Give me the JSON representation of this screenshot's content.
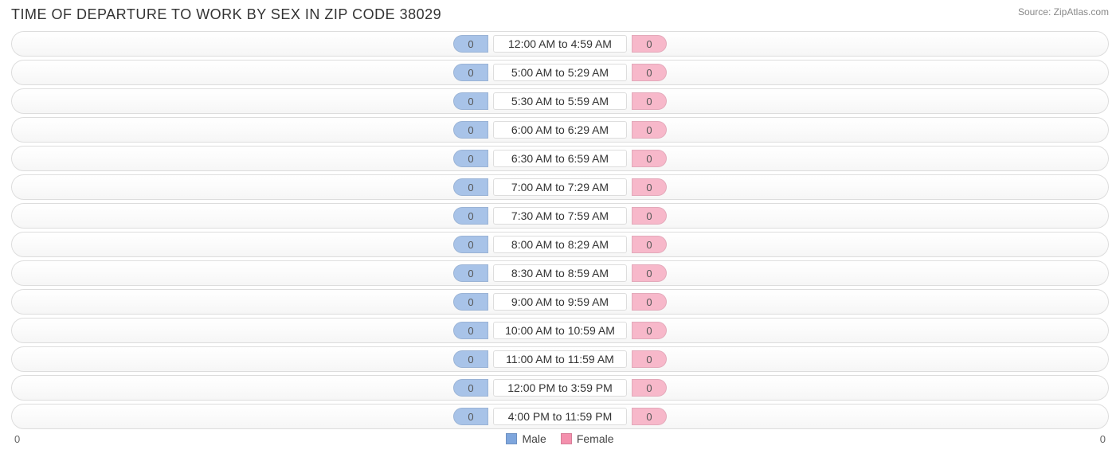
{
  "title": "TIME OF DEPARTURE TO WORK BY SEX IN ZIP CODE 38029",
  "source": "Source: ZipAtlas.com",
  "chart": {
    "type": "diverging-bar",
    "colors": {
      "male_fill": "#a8c3e8",
      "female_fill": "#f7b8ca",
      "track_border": "#dddddd",
      "label_text": "#333333",
      "value_text": "#555555",
      "background": "#ffffff"
    },
    "axis": {
      "left_value": "0",
      "right_value": "0"
    },
    "legend": [
      {
        "label": "Male",
        "color": "#7ea6dd"
      },
      {
        "label": "Female",
        "color": "#f490ad"
      }
    ],
    "rows": [
      {
        "label": "12:00 AM to 4:59 AM",
        "male": "0",
        "female": "0"
      },
      {
        "label": "5:00 AM to 5:29 AM",
        "male": "0",
        "female": "0"
      },
      {
        "label": "5:30 AM to 5:59 AM",
        "male": "0",
        "female": "0"
      },
      {
        "label": "6:00 AM to 6:29 AM",
        "male": "0",
        "female": "0"
      },
      {
        "label": "6:30 AM to 6:59 AM",
        "male": "0",
        "female": "0"
      },
      {
        "label": "7:00 AM to 7:29 AM",
        "male": "0",
        "female": "0"
      },
      {
        "label": "7:30 AM to 7:59 AM",
        "male": "0",
        "female": "0"
      },
      {
        "label": "8:00 AM to 8:29 AM",
        "male": "0",
        "female": "0"
      },
      {
        "label": "8:30 AM to 8:59 AM",
        "male": "0",
        "female": "0"
      },
      {
        "label": "9:00 AM to 9:59 AM",
        "male": "0",
        "female": "0"
      },
      {
        "label": "10:00 AM to 10:59 AM",
        "male": "0",
        "female": "0"
      },
      {
        "label": "11:00 AM to 11:59 AM",
        "male": "0",
        "female": "0"
      },
      {
        "label": "12:00 PM to 3:59 PM",
        "male": "0",
        "female": "0"
      },
      {
        "label": "4:00 PM to 11:59 PM",
        "male": "0",
        "female": "0"
      }
    ]
  }
}
